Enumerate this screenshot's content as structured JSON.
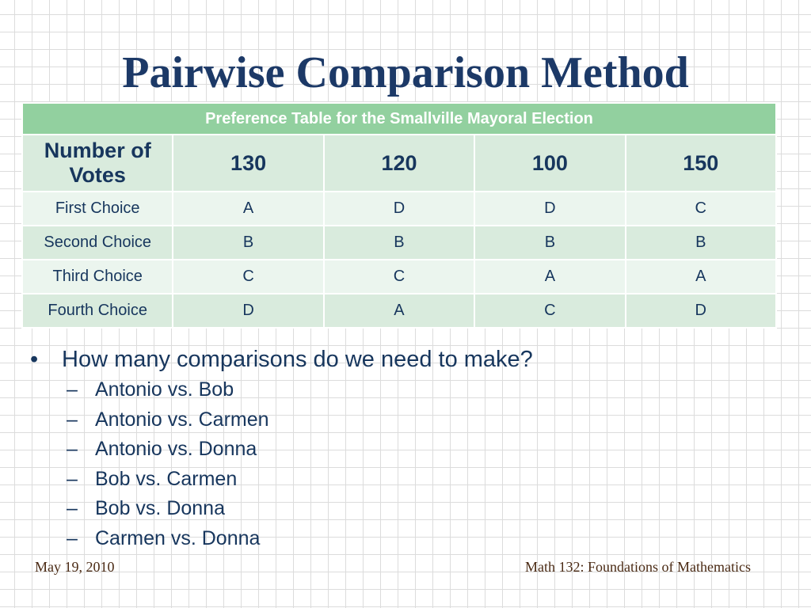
{
  "title": "Pairwise Comparison Method",
  "table": {
    "caption": "Preference Table for the Smallville Mayoral Election",
    "votes_label": "Number of Votes",
    "votes": [
      "130",
      "120",
      "100",
      "150"
    ],
    "rows": [
      {
        "label": "First Choice",
        "values": [
          "A",
          "D",
          "D",
          "C"
        ]
      },
      {
        "label": "Second Choice",
        "values": [
          "B",
          "B",
          "B",
          "B"
        ]
      },
      {
        "label": "Third Choice",
        "values": [
          "C",
          "C",
          "A",
          "A"
        ]
      },
      {
        "label": "Fourth Choice",
        "values": [
          "D",
          "A",
          "C",
          "D"
        ]
      }
    ]
  },
  "bullet": {
    "text": "How many comparisons do we need to make?",
    "sub_items": [
      "Antonio vs. Bob",
      "Antonio vs. Carmen",
      "Antonio vs. Donna",
      "Bob vs. Carmen",
      "Bob vs. Donna",
      "Carmen vs. Donna"
    ]
  },
  "footer": {
    "date": "May 19, 2010",
    "course": "Math 132:  Foundations of Mathematics"
  },
  "colors": {
    "title": "#1c3967",
    "table_header": "#92d09f",
    "table_band_dark": "#d9ebdd",
    "table_band_light": "#ebf5ee",
    "text": "#17365d",
    "footer": "#4a2a14"
  }
}
